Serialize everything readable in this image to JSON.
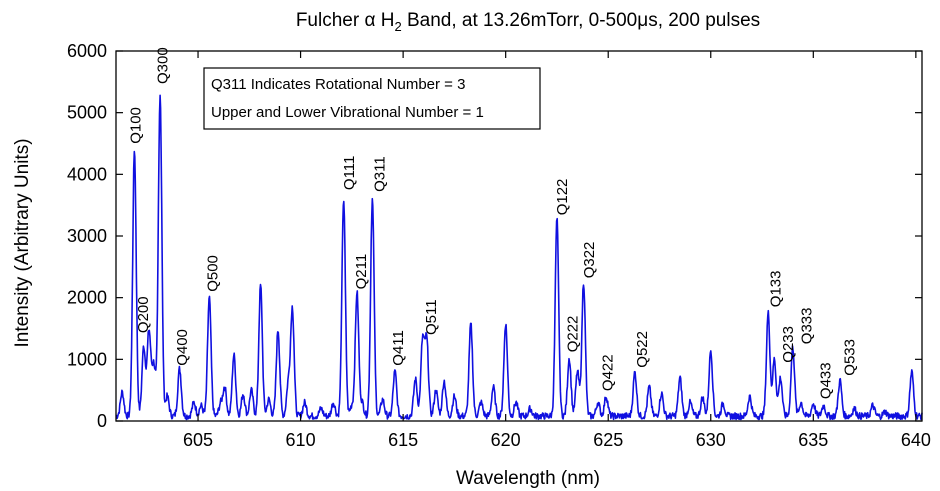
{
  "chart_data": {
    "type": "line",
    "title": {
      "prefix": "Fulcher ",
      "alpha": "α",
      "h": " H",
      "sub": "2",
      "suffix": " Band, at 13.26mTorr, 0-500",
      "mu": "μ",
      "end": "s, 200 pulses"
    },
    "xlabel": "Wavelength (nm)",
    "ylabel": "Intensity (Arbitrary Units)",
    "xlim": [
      601,
      640.3
    ],
    "ylim": [
      0,
      6000
    ],
    "x_ticks": [
      605,
      610,
      615,
      620,
      625,
      630,
      635,
      640
    ],
    "y_ticks": [
      0,
      1000,
      2000,
      3000,
      4000,
      5000,
      6000
    ],
    "grid": false,
    "line_color": "#1010e0",
    "baseline": 80,
    "peaks": [
      {
        "x": 601.3,
        "y": 470
      },
      {
        "x": 602.7,
        "y": 300
      },
      {
        "x": 601.9,
        "y": 4400
      },
      {
        "x": 602.35,
        "y": 1200
      },
      {
        "x": 602.6,
        "y": 1350
      },
      {
        "x": 602.85,
        "y": 880
      },
      {
        "x": 603.15,
        "y": 5300
      },
      {
        "x": 603.5,
        "y": 400
      },
      {
        "x": 604.1,
        "y": 850
      },
      {
        "x": 604.8,
        "y": 300
      },
      {
        "x": 605.15,
        "y": 250
      },
      {
        "x": 605.55,
        "y": 2000
      },
      {
        "x": 606.1,
        "y": 280
      },
      {
        "x": 606.3,
        "y": 550
      },
      {
        "x": 606.75,
        "y": 1070
      },
      {
        "x": 607.2,
        "y": 440
      },
      {
        "x": 607.6,
        "y": 500
      },
      {
        "x": 608.05,
        "y": 2200
      },
      {
        "x": 608.45,
        "y": 350
      },
      {
        "x": 608.9,
        "y": 1480
      },
      {
        "x": 609.4,
        "y": 600
      },
      {
        "x": 609.6,
        "y": 1820
      },
      {
        "x": 610.2,
        "y": 300
      },
      {
        "x": 611.0,
        "y": 200
      },
      {
        "x": 611.6,
        "y": 300
      },
      {
        "x": 612.1,
        "y": 3600
      },
      {
        "x": 612.5,
        "y": 250
      },
      {
        "x": 612.75,
        "y": 2080
      },
      {
        "x": 613.0,
        "y": 300
      },
      {
        "x": 613.5,
        "y": 3600
      },
      {
        "x": 614.0,
        "y": 350
      },
      {
        "x": 614.6,
        "y": 800
      },
      {
        "x": 615.6,
        "y": 680
      },
      {
        "x": 615.95,
        "y": 1300
      },
      {
        "x": 616.15,
        "y": 1300
      },
      {
        "x": 616.6,
        "y": 500
      },
      {
        "x": 617.0,
        "y": 650
      },
      {
        "x": 617.5,
        "y": 400
      },
      {
        "x": 618.3,
        "y": 1570
      },
      {
        "x": 618.8,
        "y": 300
      },
      {
        "x": 619.4,
        "y": 550
      },
      {
        "x": 620.0,
        "y": 1580
      },
      {
        "x": 620.5,
        "y": 300
      },
      {
        "x": 621.2,
        "y": 200
      },
      {
        "x": 622.5,
        "y": 3260
      },
      {
        "x": 623.1,
        "y": 1020
      },
      {
        "x": 623.5,
        "y": 800
      },
      {
        "x": 623.8,
        "y": 2250
      },
      {
        "x": 624.5,
        "y": 300
      },
      {
        "x": 624.9,
        "y": 400
      },
      {
        "x": 626.3,
        "y": 790
      },
      {
        "x": 627.0,
        "y": 550
      },
      {
        "x": 627.6,
        "y": 450
      },
      {
        "x": 628.5,
        "y": 700
      },
      {
        "x": 629.0,
        "y": 300
      },
      {
        "x": 629.6,
        "y": 380
      },
      {
        "x": 630.0,
        "y": 1150
      },
      {
        "x": 630.6,
        "y": 280
      },
      {
        "x": 631.9,
        "y": 400
      },
      {
        "x": 632.8,
        "y": 1750
      },
      {
        "x": 633.1,
        "y": 1000
      },
      {
        "x": 633.4,
        "y": 700
      },
      {
        "x": 634.0,
        "y": 1200
      },
      {
        "x": 634.4,
        "y": 300
      },
      {
        "x": 635.0,
        "y": 280
      },
      {
        "x": 635.5,
        "y": 250
      },
      {
        "x": 636.3,
        "y": 660
      },
      {
        "x": 637.0,
        "y": 200
      },
      {
        "x": 637.9,
        "y": 250
      },
      {
        "x": 638.5,
        "y": 150
      },
      {
        "x": 639.8,
        "y": 800
      }
    ],
    "annotations": [
      {
        "label": "Q100",
        "x": 602.2,
        "y": 4430
      },
      {
        "label": "Q200",
        "x": 602.55,
        "y": 1360
      },
      {
        "label": "Q300",
        "x": 603.5,
        "y": 5400
      },
      {
        "label": "Q400",
        "x": 604.45,
        "y": 830
      },
      {
        "label": "Q500",
        "x": 605.95,
        "y": 2030
      },
      {
        "label": "Q111",
        "x": 612.6,
        "y": 3680
      },
      {
        "label": "Q211",
        "x": 613.2,
        "y": 2070
      },
      {
        "label": "Q311",
        "x": 614.1,
        "y": 3650
      },
      {
        "label": "Q411",
        "x": 615.0,
        "y": 830
      },
      {
        "label": "Q511",
        "x": 616.6,
        "y": 1330
      },
      {
        "label": "Q122",
        "x": 623.0,
        "y": 3270
      },
      {
        "label": "Q222",
        "x": 623.5,
        "y": 1050
      },
      {
        "label": "Q322",
        "x": 624.3,
        "y": 2250
      },
      {
        "label": "Q422",
        "x": 625.2,
        "y": 420
      },
      {
        "label": "Q522",
        "x": 626.9,
        "y": 800
      },
      {
        "label": "Q133",
        "x": 633.4,
        "y": 1780
      },
      {
        "label": "Q233",
        "x": 634.0,
        "y": 880
      },
      {
        "label": "Q333",
        "x": 634.9,
        "y": 1180
      },
      {
        "label": "Q433",
        "x": 635.85,
        "y": 290
      },
      {
        "label": "Q533",
        "x": 637.0,
        "y": 670
      }
    ],
    "legend": {
      "placement": "top-left",
      "lines": [
        "Q311 Indicates Rotational Number = 3",
        "Upper and Lower Vibrational Number = 1"
      ]
    }
  }
}
